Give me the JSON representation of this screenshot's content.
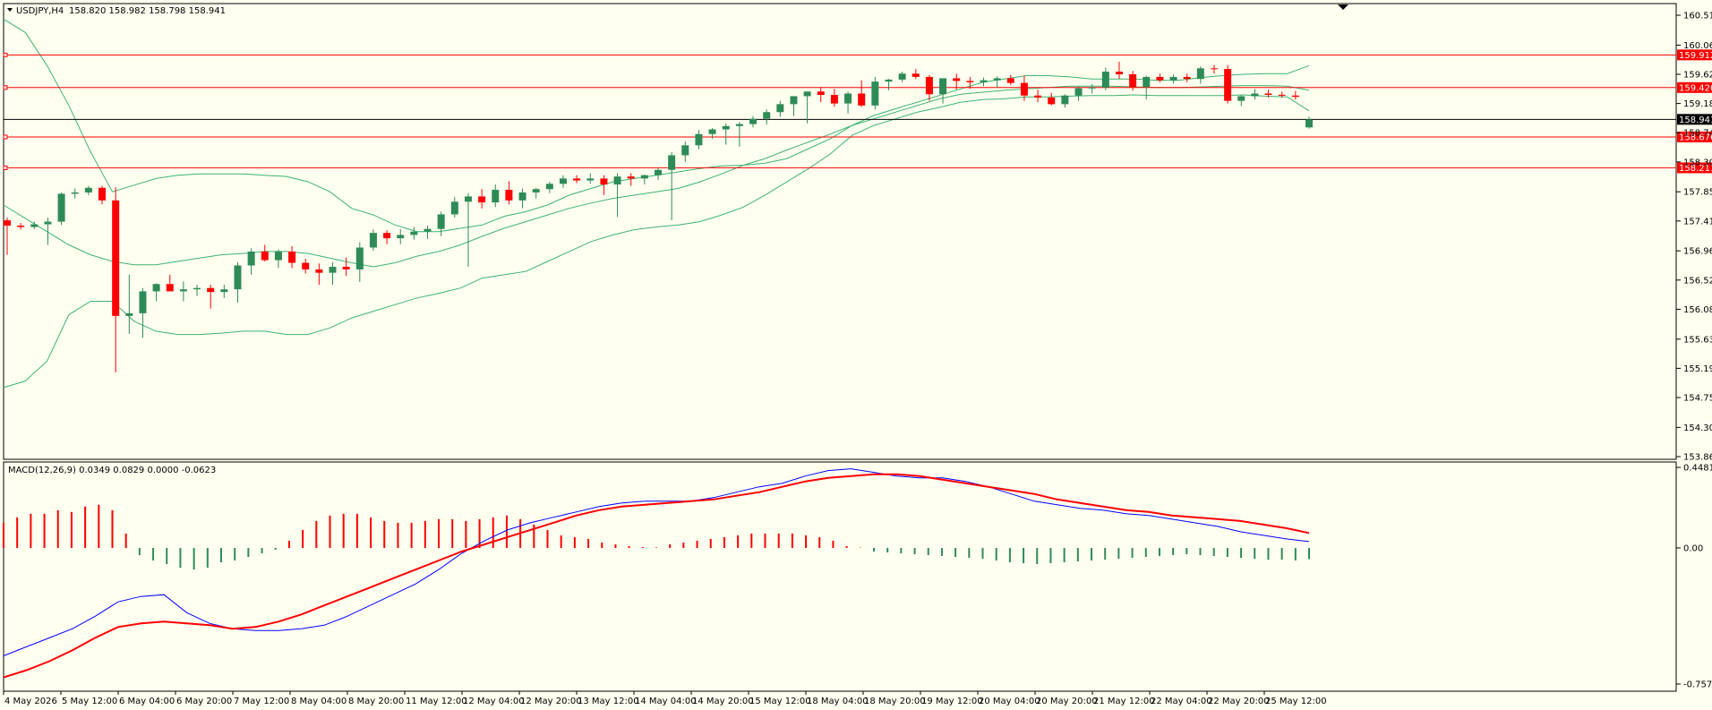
{
  "header": {
    "symbol_tf": "USDJPY,H4",
    "ohlc": "158.820 158.982 158.798 158.941"
  },
  "indicator": {
    "label": "MACD(12,26,9) 0.0349 0.0829 0.0000 -0.0623"
  },
  "colors": {
    "background": "#fffff0",
    "bull": "#2e8b57",
    "bear": "#ff0000",
    "band": "#3cb371",
    "macd_main": "#0000ff",
    "macd_signal": "#ff0000",
    "level": "#ff0000",
    "price_line": "#000000"
  },
  "chart_data": [
    {
      "type": "candlestick",
      "ylim": [
        153.86,
        160.51
      ],
      "yticks": [
        "160.510",
        "160.060",
        "159.620",
        "159.180",
        "158.740",
        "158.300",
        "157.850",
        "157.410",
        "156.960",
        "156.520",
        "156.080",
        "155.630",
        "155.190",
        "154.750",
        "154.300",
        "153.860"
      ],
      "xticks": [
        "4 May 2026",
        "5 May 12:00",
        "6 May 04:00",
        "6 May 20:00",
        "7 May 12:00",
        "8 May 04:00",
        "8 May 20:00",
        "11 May 12:00",
        "12 May 04:00",
        "12 May 20:00",
        "13 May 12:00",
        "14 May 04:00",
        "14 May 20:00",
        "15 May 12:00",
        "18 May 04:00",
        "18 May 20:00",
        "19 May 12:00",
        "20 May 04:00",
        "20 May 20:00",
        "21 May 12:00",
        "22 May 04:00",
        "22 May 20:00",
        "25 May 12:00"
      ],
      "horizontal_levels": [
        159.912,
        159.42,
        158.676,
        158.211
      ],
      "level_labels": [
        "159.912",
        "159.420",
        "158.676",
        "158.211"
      ],
      "current_price": 158.941,
      "current_price_label": "158.941",
      "candles": [
        [
          157.42,
          157.46,
          156.9,
          157.34
        ],
        [
          157.34,
          157.38,
          157.28,
          157.32
        ],
        [
          157.32,
          157.4,
          157.29,
          157.36
        ],
        [
          157.36,
          157.46,
          157.05,
          157.4
        ],
        [
          157.4,
          157.84,
          157.35,
          157.82
        ],
        [
          157.82,
          157.9,
          157.75,
          157.84
        ],
        [
          157.84,
          157.94,
          157.8,
          157.91
        ],
        [
          157.91,
          157.94,
          157.66,
          157.72
        ],
        [
          157.72,
          157.92,
          155.13,
          155.98
        ],
        [
          155.98,
          156.6,
          155.71,
          156.02
        ],
        [
          156.02,
          156.4,
          155.65,
          156.35
        ],
        [
          156.35,
          156.47,
          156.2,
          156.46
        ],
        [
          156.46,
          156.6,
          156.4,
          156.35
        ],
        [
          156.35,
          156.5,
          156.2,
          156.38
        ],
        [
          156.38,
          156.45,
          156.28,
          156.4
        ],
        [
          156.4,
          156.45,
          156.09,
          156.34
        ],
        [
          156.34,
          156.45,
          156.25,
          156.38
        ],
        [
          156.38,
          156.79,
          156.18,
          156.74
        ],
        [
          156.74,
          157.0,
          156.6,
          156.95
        ],
        [
          156.95,
          157.05,
          156.8,
          156.82
        ],
        [
          156.82,
          156.98,
          156.7,
          156.95
        ],
        [
          156.95,
          157.03,
          156.7,
          156.78
        ],
        [
          156.78,
          156.84,
          156.62,
          156.68
        ],
        [
          156.68,
          156.77,
          156.45,
          156.63
        ],
        [
          156.63,
          156.79,
          156.45,
          156.72
        ],
        [
          156.72,
          156.86,
          156.58,
          156.68
        ],
        [
          156.68,
          157.09,
          156.49,
          157.01
        ],
        [
          157.01,
          157.28,
          156.96,
          157.23
        ],
        [
          157.23,
          157.27,
          157.06,
          157.15
        ],
        [
          157.15,
          157.29,
          157.06,
          157.2
        ],
        [
          157.2,
          157.32,
          157.13,
          157.25
        ],
        [
          157.25,
          157.34,
          157.14,
          157.29
        ],
        [
          157.29,
          157.55,
          157.18,
          157.51
        ],
        [
          157.51,
          157.77,
          157.46,
          157.7
        ],
        [
          157.7,
          157.83,
          156.72,
          157.78
        ],
        [
          157.78,
          157.89,
          157.6,
          157.69
        ],
        [
          157.69,
          157.96,
          157.62,
          157.88
        ],
        [
          157.88,
          158.01,
          157.66,
          157.72
        ],
        [
          157.72,
          157.9,
          157.6,
          157.84
        ],
        [
          157.84,
          157.91,
          157.75,
          157.89
        ],
        [
          157.89,
          158.0,
          157.83,
          157.97
        ],
        [
          157.97,
          158.1,
          157.91,
          158.05
        ],
        [
          158.05,
          158.1,
          157.98,
          158.02
        ],
        [
          158.02,
          158.13,
          157.97,
          158.05
        ],
        [
          158.05,
          158.1,
          157.8,
          157.96
        ],
        [
          157.96,
          158.13,
          157.47,
          158.08
        ],
        [
          158.08,
          158.13,
          157.94,
          158.05
        ],
        [
          158.05,
          158.11,
          157.96,
          158.1
        ],
        [
          158.1,
          158.21,
          158.03,
          158.18
        ],
        [
          158.18,
          158.45,
          157.42,
          158.4
        ],
        [
          158.4,
          158.61,
          158.3,
          158.55
        ],
        [
          158.55,
          158.78,
          158.49,
          158.72
        ],
        [
          158.72,
          158.81,
          158.65,
          158.79
        ],
        [
          158.79,
          158.88,
          158.56,
          158.84
        ],
        [
          158.84,
          158.9,
          158.53,
          158.87
        ],
        [
          158.87,
          158.99,
          158.82,
          158.95
        ],
        [
          158.95,
          159.09,
          158.86,
          159.05
        ],
        [
          159.05,
          159.22,
          158.98,
          159.17
        ],
        [
          159.17,
          159.29,
          158.99,
          159.29
        ],
        [
          159.29,
          159.36,
          158.88,
          159.36
        ],
        [
          159.36,
          159.43,
          159.2,
          159.31
        ],
        [
          159.31,
          159.4,
          159.13,
          159.18
        ],
        [
          159.18,
          159.36,
          159.03,
          159.33
        ],
        [
          159.33,
          159.53,
          159.13,
          159.15
        ],
        [
          159.15,
          159.58,
          159.09,
          159.51
        ],
        [
          159.51,
          159.55,
          159.38,
          159.54
        ],
        [
          159.54,
          159.66,
          159.5,
          159.63
        ],
        [
          159.63,
          159.7,
          159.55,
          159.58
        ],
        [
          159.58,
          159.61,
          159.22,
          159.32
        ],
        [
          159.32,
          159.56,
          159.18,
          159.56
        ],
        [
          159.56,
          159.63,
          159.39,
          159.52
        ],
        [
          159.52,
          159.58,
          159.4,
          159.5
        ],
        [
          159.5,
          159.57,
          159.44,
          159.53
        ],
        [
          159.53,
          159.59,
          159.42,
          159.56
        ],
        [
          159.56,
          159.61,
          159.46,
          159.49
        ],
        [
          159.49,
          159.6,
          159.22,
          159.3
        ],
        [
          159.3,
          159.39,
          159.2,
          159.27
        ],
        [
          159.27,
          159.34,
          159.15,
          159.17
        ],
        [
          159.17,
          159.32,
          159.12,
          159.3
        ],
        [
          159.3,
          159.44,
          159.22,
          159.41
        ],
        [
          159.41,
          159.47,
          159.33,
          159.42
        ],
        [
          159.42,
          159.72,
          159.38,
          159.66
        ],
        [
          159.66,
          159.81,
          159.55,
          159.62
        ],
        [
          159.62,
          159.67,
          159.37,
          159.43
        ],
        [
          159.43,
          159.6,
          159.24,
          159.58
        ],
        [
          159.58,
          159.63,
          159.5,
          159.53
        ],
        [
          159.53,
          159.62,
          159.48,
          159.58
        ],
        [
          159.58,
          159.63,
          159.5,
          159.55
        ],
        [
          159.55,
          159.74,
          159.48,
          159.71
        ],
        [
          159.71,
          159.76,
          159.63,
          159.7
        ],
        [
          159.7,
          159.76,
          159.18,
          159.22
        ],
        [
          159.22,
          159.31,
          159.14,
          159.29
        ],
        [
          159.29,
          159.4,
          159.24,
          159.33
        ],
        [
          159.33,
          159.39,
          159.27,
          159.31
        ],
        [
          159.31,
          159.36,
          159.27,
          159.3
        ],
        [
          159.3,
          159.37,
          159.24,
          159.28
        ],
        [
          158.82,
          158.98,
          158.8,
          158.94
        ]
      ],
      "bollinger": {
        "upper": [
          160.45,
          160.25,
          159.75,
          159.15,
          158.45,
          157.85,
          157.95,
          158.05,
          158.1,
          158.12,
          158.12,
          158.12,
          158.1,
          158.08,
          158.0,
          157.85,
          157.6,
          157.5,
          157.35,
          157.25,
          157.25,
          157.3,
          157.35,
          157.48,
          157.55,
          157.65,
          157.8,
          157.9,
          158.0,
          158.05,
          158.1,
          158.15,
          158.2,
          158.24,
          158.25,
          158.28,
          158.35,
          158.5,
          158.65,
          158.85,
          159.0,
          159.1,
          159.2,
          159.3,
          159.4,
          159.5,
          159.55,
          159.6,
          159.6,
          159.58,
          159.55,
          159.55,
          159.55,
          159.53,
          159.53,
          159.57,
          159.6,
          159.62,
          159.63,
          159.63,
          159.75
        ],
        "middle": [
          157.65,
          157.45,
          157.25,
          157.05,
          156.9,
          156.8,
          156.75,
          156.75,
          156.8,
          156.85,
          156.9,
          156.92,
          156.95,
          156.95,
          156.92,
          156.85,
          156.78,
          156.72,
          156.78,
          156.88,
          156.95,
          157.05,
          157.18,
          157.3,
          157.4,
          157.5,
          157.6,
          157.68,
          157.75,
          157.8,
          157.85,
          157.9,
          158.0,
          158.12,
          158.25,
          158.35,
          158.48,
          158.6,
          158.72,
          158.85,
          158.95,
          159.05,
          159.15,
          159.25,
          159.32,
          159.35,
          159.38,
          159.4,
          159.42,
          159.44,
          159.44,
          159.44,
          159.43,
          159.42,
          159.42,
          159.43,
          159.44,
          159.45,
          159.45,
          159.44,
          159.38
        ],
        "lower": [
          154.9,
          155.0,
          155.3,
          156.0,
          156.2,
          156.2,
          155.9,
          155.75,
          155.7,
          155.7,
          155.72,
          155.75,
          155.75,
          155.7,
          155.7,
          155.8,
          155.95,
          156.05,
          156.15,
          156.25,
          156.32,
          156.4,
          156.55,
          156.6,
          156.65,
          156.8,
          156.95,
          157.1,
          157.2,
          157.28,
          157.32,
          157.35,
          157.4,
          157.5,
          157.62,
          157.8,
          158.0,
          158.2,
          158.42,
          158.7,
          158.85,
          158.95,
          159.05,
          159.12,
          159.2,
          159.24,
          159.25,
          159.28,
          159.28,
          159.29,
          159.3,
          159.3,
          159.31,
          159.3,
          159.3,
          159.3,
          159.3,
          159.31,
          159.29,
          159.28,
          159.07
        ]
      }
    },
    {
      "type": "macd",
      "ylim": [
        -0.7571,
        0.4481
      ],
      "yticks": [
        "0.4481",
        "0.00",
        "-0.7571"
      ],
      "histogram": [
        0.14,
        0.17,
        0.19,
        0.19,
        0.21,
        0.2,
        0.23,
        0.24,
        0.21,
        0.08,
        -0.04,
        -0.07,
        -0.09,
        -0.11,
        -0.12,
        -0.11,
        -0.08,
        -0.07,
        -0.05,
        -0.03,
        -0.01,
        0.04,
        0.1,
        0.15,
        0.18,
        0.19,
        0.19,
        0.17,
        0.15,
        0.14,
        0.14,
        0.15,
        0.16,
        0.16,
        0.15,
        0.16,
        0.17,
        0.18,
        0.16,
        0.13,
        0.1,
        0.07,
        0.06,
        0.05,
        0.03,
        0.02,
        0.01,
        0.005,
        0.003,
        0.02,
        0.03,
        0.04,
        0.05,
        0.06,
        0.07,
        0.08,
        0.08,
        0.08,
        0.08,
        0.07,
        0.06,
        0.04,
        0.01,
        0.002,
        -0.02,
        -0.025,
        -0.03,
        -0.035,
        -0.04,
        -0.045,
        -0.05,
        -0.055,
        -0.06,
        -0.07,
        -0.08,
        -0.085,
        -0.09,
        -0.085,
        -0.08,
        -0.075,
        -0.07,
        -0.065,
        -0.06,
        -0.055,
        -0.05,
        -0.045,
        -0.04,
        -0.035,
        -0.04,
        -0.045,
        -0.05,
        -0.055,
        -0.06,
        -0.065,
        -0.065,
        -0.07,
        -0.0623
      ],
      "macd": [
        -0.6,
        -0.55,
        -0.5,
        -0.45,
        -0.38,
        -0.3,
        -0.27,
        -0.26,
        -0.36,
        -0.42,
        -0.45,
        -0.46,
        -0.46,
        -0.45,
        -0.43,
        -0.38,
        -0.32,
        -0.26,
        -0.2,
        -0.12,
        -0.03,
        0.04,
        0.1,
        0.14,
        0.17,
        0.2,
        0.23,
        0.25,
        0.26,
        0.26,
        0.26,
        0.28,
        0.31,
        0.34,
        0.36,
        0.4,
        0.43,
        0.44,
        0.42,
        0.4,
        0.39,
        0.39,
        0.37,
        0.34,
        0.3,
        0.26,
        0.24,
        0.22,
        0.21,
        0.19,
        0.18,
        0.16,
        0.14,
        0.12,
        0.09,
        0.07,
        0.05,
        0.035
      ],
      "signal": [
        -0.72,
        -0.68,
        -0.63,
        -0.57,
        -0.5,
        -0.44,
        -0.42,
        -0.41,
        -0.42,
        -0.43,
        -0.45,
        -0.44,
        -0.41,
        -0.37,
        -0.32,
        -0.27,
        -0.22,
        -0.17,
        -0.12,
        -0.07,
        -0.02,
        0.02,
        0.06,
        0.1,
        0.14,
        0.18,
        0.21,
        0.23,
        0.24,
        0.25,
        0.26,
        0.27,
        0.29,
        0.31,
        0.34,
        0.37,
        0.39,
        0.4,
        0.41,
        0.41,
        0.4,
        0.38,
        0.36,
        0.34,
        0.32,
        0.3,
        0.27,
        0.25,
        0.23,
        0.21,
        0.2,
        0.18,
        0.17,
        0.16,
        0.15,
        0.13,
        0.11,
        0.083
      ]
    }
  ]
}
